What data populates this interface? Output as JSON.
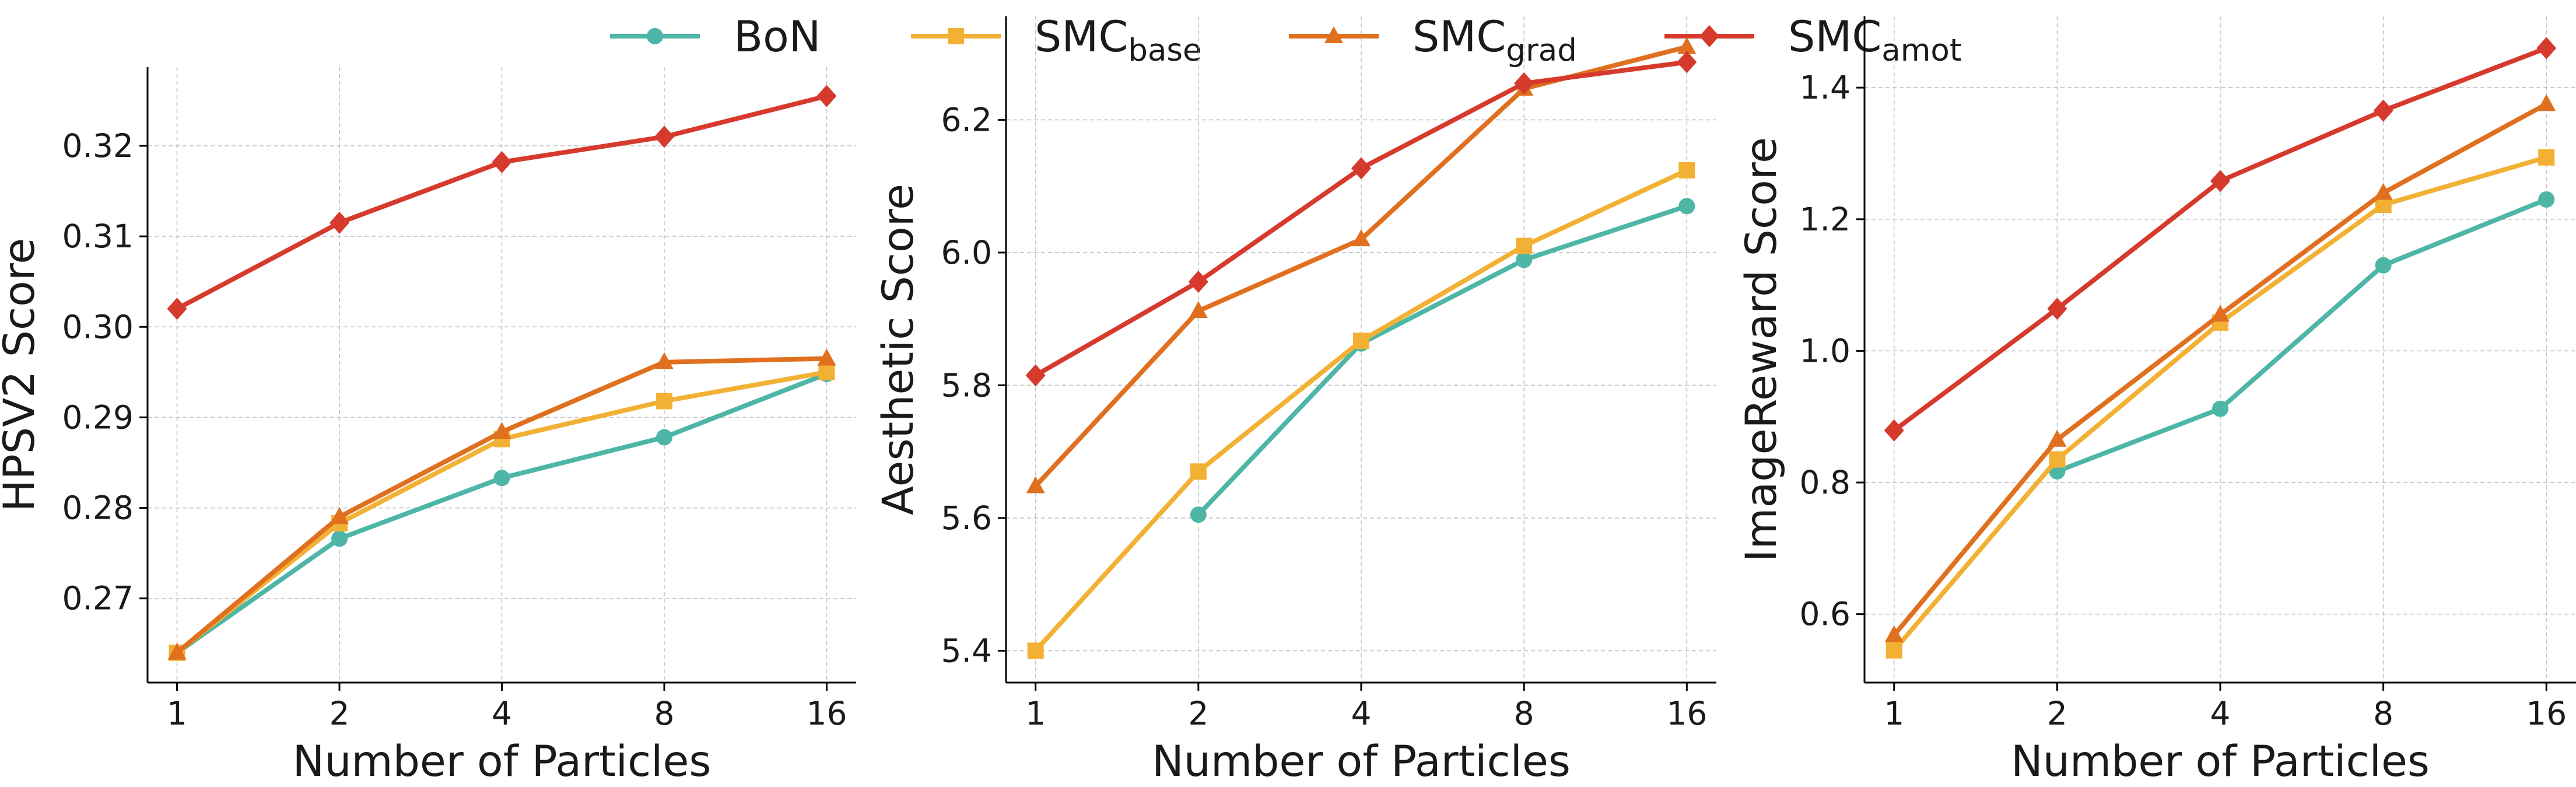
{
  "legend": {
    "entries": [
      {
        "key": "bon",
        "base": "BoN",
        "sub": "",
        "color": "#4db6a6",
        "marker": "circle"
      },
      {
        "key": "smc_base",
        "base": "SMC",
        "sub": "base",
        "color": "#f2b134",
        "marker": "square"
      },
      {
        "key": "smc_grad",
        "base": "SMC",
        "sub": "grad",
        "color": "#e07020",
        "marker": "triangle"
      },
      {
        "key": "smc_amot",
        "base": "SMC",
        "sub": "amot",
        "color": "#d63a2c",
        "marker": "diamond"
      }
    ]
  },
  "chart_data": [
    {
      "type": "line",
      "xlabel": "Number of Particles",
      "ylabel": "HPSV2 Score",
      "categories": [
        "1",
        "2",
        "4",
        "8",
        "16"
      ],
      "ylim": [
        0.2607,
        0.3287
      ],
      "yticks": [
        0.27,
        0.28,
        0.29,
        0.3,
        0.31,
        0.32
      ],
      "ytick_labels": [
        "0.27",
        "0.28",
        "0.29",
        "0.30",
        "0.31",
        "0.32"
      ],
      "grid": true,
      "series": [
        {
          "name": "BoN",
          "key": "bon",
          "values": [
            0.264,
            0.2766,
            0.2833,
            0.2878,
            0.2948
          ]
        },
        {
          "name": "SMC base",
          "key": "smc_base",
          "values": [
            0.264,
            0.2783,
            0.2876,
            0.2918,
            0.295
          ]
        },
        {
          "name": "SMC grad",
          "key": "smc_grad",
          "values": [
            0.264,
            0.279,
            0.2884,
            0.2961,
            0.2965
          ]
        },
        {
          "name": "SMC amot",
          "key": "smc_amot",
          "values": [
            0.302,
            0.3115,
            0.3182,
            0.321,
            0.3255
          ]
        }
      ]
    },
    {
      "type": "line",
      "xlabel": "Number of Particles",
      "ylabel": "Aesthetic Score",
      "categories": [
        "1",
        "2",
        "4",
        "8",
        "16"
      ],
      "ylim": [
        5.352,
        6.356
      ],
      "yticks": [
        5.4,
        5.6,
        5.8,
        6.0,
        6.2
      ],
      "ytick_labels": [
        "5.4",
        "5.6",
        "5.8",
        "6.0",
        "6.2"
      ],
      "grid": true,
      "series": [
        {
          "name": "BoN",
          "key": "bon",
          "values": [
            null,
            5.605,
            5.863,
            5.989,
            6.07
          ]
        },
        {
          "name": "SMC base",
          "key": "smc_base",
          "values": [
            5.4,
            5.67,
            5.867,
            6.01,
            6.124
          ]
        },
        {
          "name": "SMC grad",
          "key": "smc_grad",
          "values": [
            5.648,
            5.912,
            6.02,
            6.247,
            6.31
          ]
        },
        {
          "name": "SMC amot",
          "key": "smc_amot",
          "values": [
            5.815,
            5.956,
            6.127,
            6.255,
            6.287
          ]
        }
      ]
    },
    {
      "type": "line",
      "xlabel": "Number of Particles",
      "ylabel": "ImageReward Score",
      "categories": [
        "1",
        "2",
        "4",
        "8",
        "16"
      ],
      "ylim": [
        0.496,
        1.5083
      ],
      "yticks": [
        0.6,
        0.8,
        1.0,
        1.2,
        1.4
      ],
      "ytick_labels": [
        "0.6",
        "0.8",
        "1.0",
        "1.2",
        "1.4"
      ],
      "grid": true,
      "series": [
        {
          "name": "BoN",
          "key": "bon",
          "values": [
            null,
            0.817,
            0.912,
            1.13,
            1.23
          ]
        },
        {
          "name": "SMC base",
          "key": "smc_base",
          "values": [
            0.545,
            0.835,
            1.043,
            1.222,
            1.294
          ]
        },
        {
          "name": "SMC grad",
          "key": "smc_grad",
          "values": [
            0.568,
            0.865,
            1.055,
            1.24,
            1.375
          ]
        },
        {
          "name": "SMC amot",
          "key": "smc_amot",
          "values": [
            0.879,
            1.064,
            1.258,
            1.365,
            1.46
          ]
        }
      ]
    }
  ]
}
